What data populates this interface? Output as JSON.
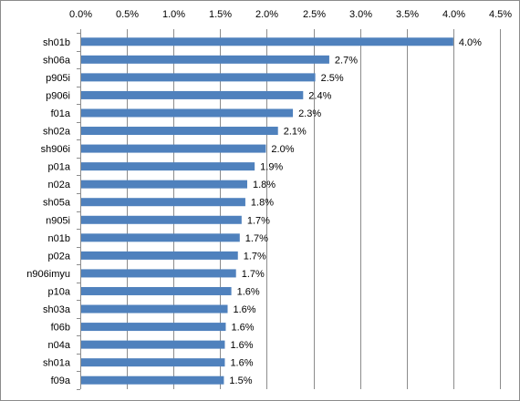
{
  "chart_data": {
    "type": "bar",
    "orientation": "horizontal",
    "title": "",
    "xlabel": "",
    "ylabel": "",
    "xlim": [
      0,
      4.5
    ],
    "x_ticks": [
      0,
      0.5,
      1.0,
      1.5,
      2.0,
      2.5,
      3.0,
      3.5,
      4.0,
      4.5
    ],
    "x_tick_labels": [
      "0.0%",
      "0.5%",
      "1.0%",
      "1.5%",
      "2.0%",
      "2.5%",
      "3.0%",
      "3.5%",
      "4.0%",
      "4.5%"
    ],
    "x_axis_position": "top",
    "grid": true,
    "legend": "none",
    "bar_color": "#4f81bd",
    "categories": [
      "sh01b",
      "sh06a",
      "p905i",
      "p906i",
      "f01a",
      "sh02a",
      "sh906i",
      "p01a",
      "n02a",
      "sh05a",
      "n905i",
      "n01b",
      "p02a",
      "n906imyu",
      "p10a",
      "sh03a",
      "f06b",
      "n04a",
      "sh01a",
      "f09a"
    ],
    "values": [
      4.0,
      2.67,
      2.52,
      2.39,
      2.28,
      2.12,
      1.99,
      1.87,
      1.79,
      1.77,
      1.73,
      1.71,
      1.69,
      1.67,
      1.62,
      1.58,
      1.56,
      1.55,
      1.55,
      1.54
    ],
    "data_labels": [
      "4.0%",
      "2.7%",
      "2.5%",
      "2.4%",
      "2.3%",
      "2.1%",
      "2.0%",
      "1.9%",
      "1.8%",
      "1.8%",
      "1.7%",
      "1.7%",
      "1.7%",
      "1.7%",
      "1.6%",
      "1.6%",
      "1.6%",
      "1.6%",
      "1.6%",
      "1.5%"
    ]
  }
}
